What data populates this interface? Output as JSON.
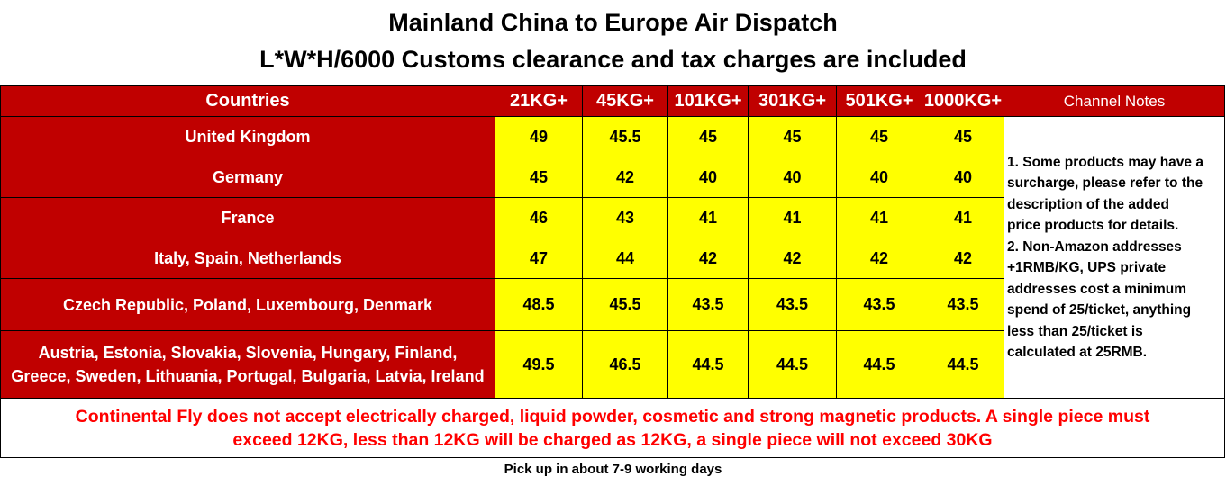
{
  "title_line1": "Mainland China to Europe Air Dispatch",
  "title_line2": "L*W*H/6000  Customs clearance and tax charges are included",
  "header": {
    "countries": "Countries",
    "weights": [
      "21KG+",
      "45KG+",
      "101KG+",
      "301KG+",
      "501KG+",
      "1000KG+"
    ],
    "notes": "Channel Notes"
  },
  "rows": [
    {
      "countries": "United Kingdom",
      "values": [
        "49",
        "45.5",
        "45",
        "45",
        "45",
        "45"
      ]
    },
    {
      "countries": "Germany",
      "values": [
        "45",
        "42",
        "40",
        "40",
        "40",
        "40"
      ]
    },
    {
      "countries": "France",
      "values": [
        "46",
        "43",
        "41",
        "41",
        "41",
        "41"
      ]
    },
    {
      "countries": "Italy, Spain, Netherlands",
      "values": [
        "47",
        "44",
        "42",
        "42",
        "42",
        "42"
      ]
    },
    {
      "countries": "Czech Republic, Poland, Luxembourg, Denmark",
      "values": [
        "48.5",
        "45.5",
        "43.5",
        "43.5",
        "43.5",
        "43.5"
      ]
    },
    {
      "countries_line1": "Austria, Estonia, Slovakia, Slovenia, Hungary, Finland,",
      "countries_line2": "Greece, Sweden, Lithuania, Portugal, Bulgaria, Latvia, Ireland",
      "values": [
        "49.5",
        "46.5",
        "44.5",
        "44.5",
        "44.5",
        "44.5"
      ]
    }
  ],
  "notes_lines": [
    "1. Some products may have a",
    "surcharge, please refer to the",
    "description of the added",
    "price products for details.",
    "2. Non-Amazon addresses",
    "+1RMB/KG, UPS private",
    "addresses cost a minimum",
    "spend of 25/ticket, anything",
    "less than 25/ticket is",
    "calculated at 25RMB."
  ],
  "warning_line1": "Continental Fly does not accept electrically charged, liquid powder, cosmetic and strong magnetic products. A single piece must",
  "warning_line2": "exceed 12KG, less than 12KG will be charged as 12KG, a single piece will not exceed 30KG",
  "footer": "Pick up in about 7-9 working days"
}
